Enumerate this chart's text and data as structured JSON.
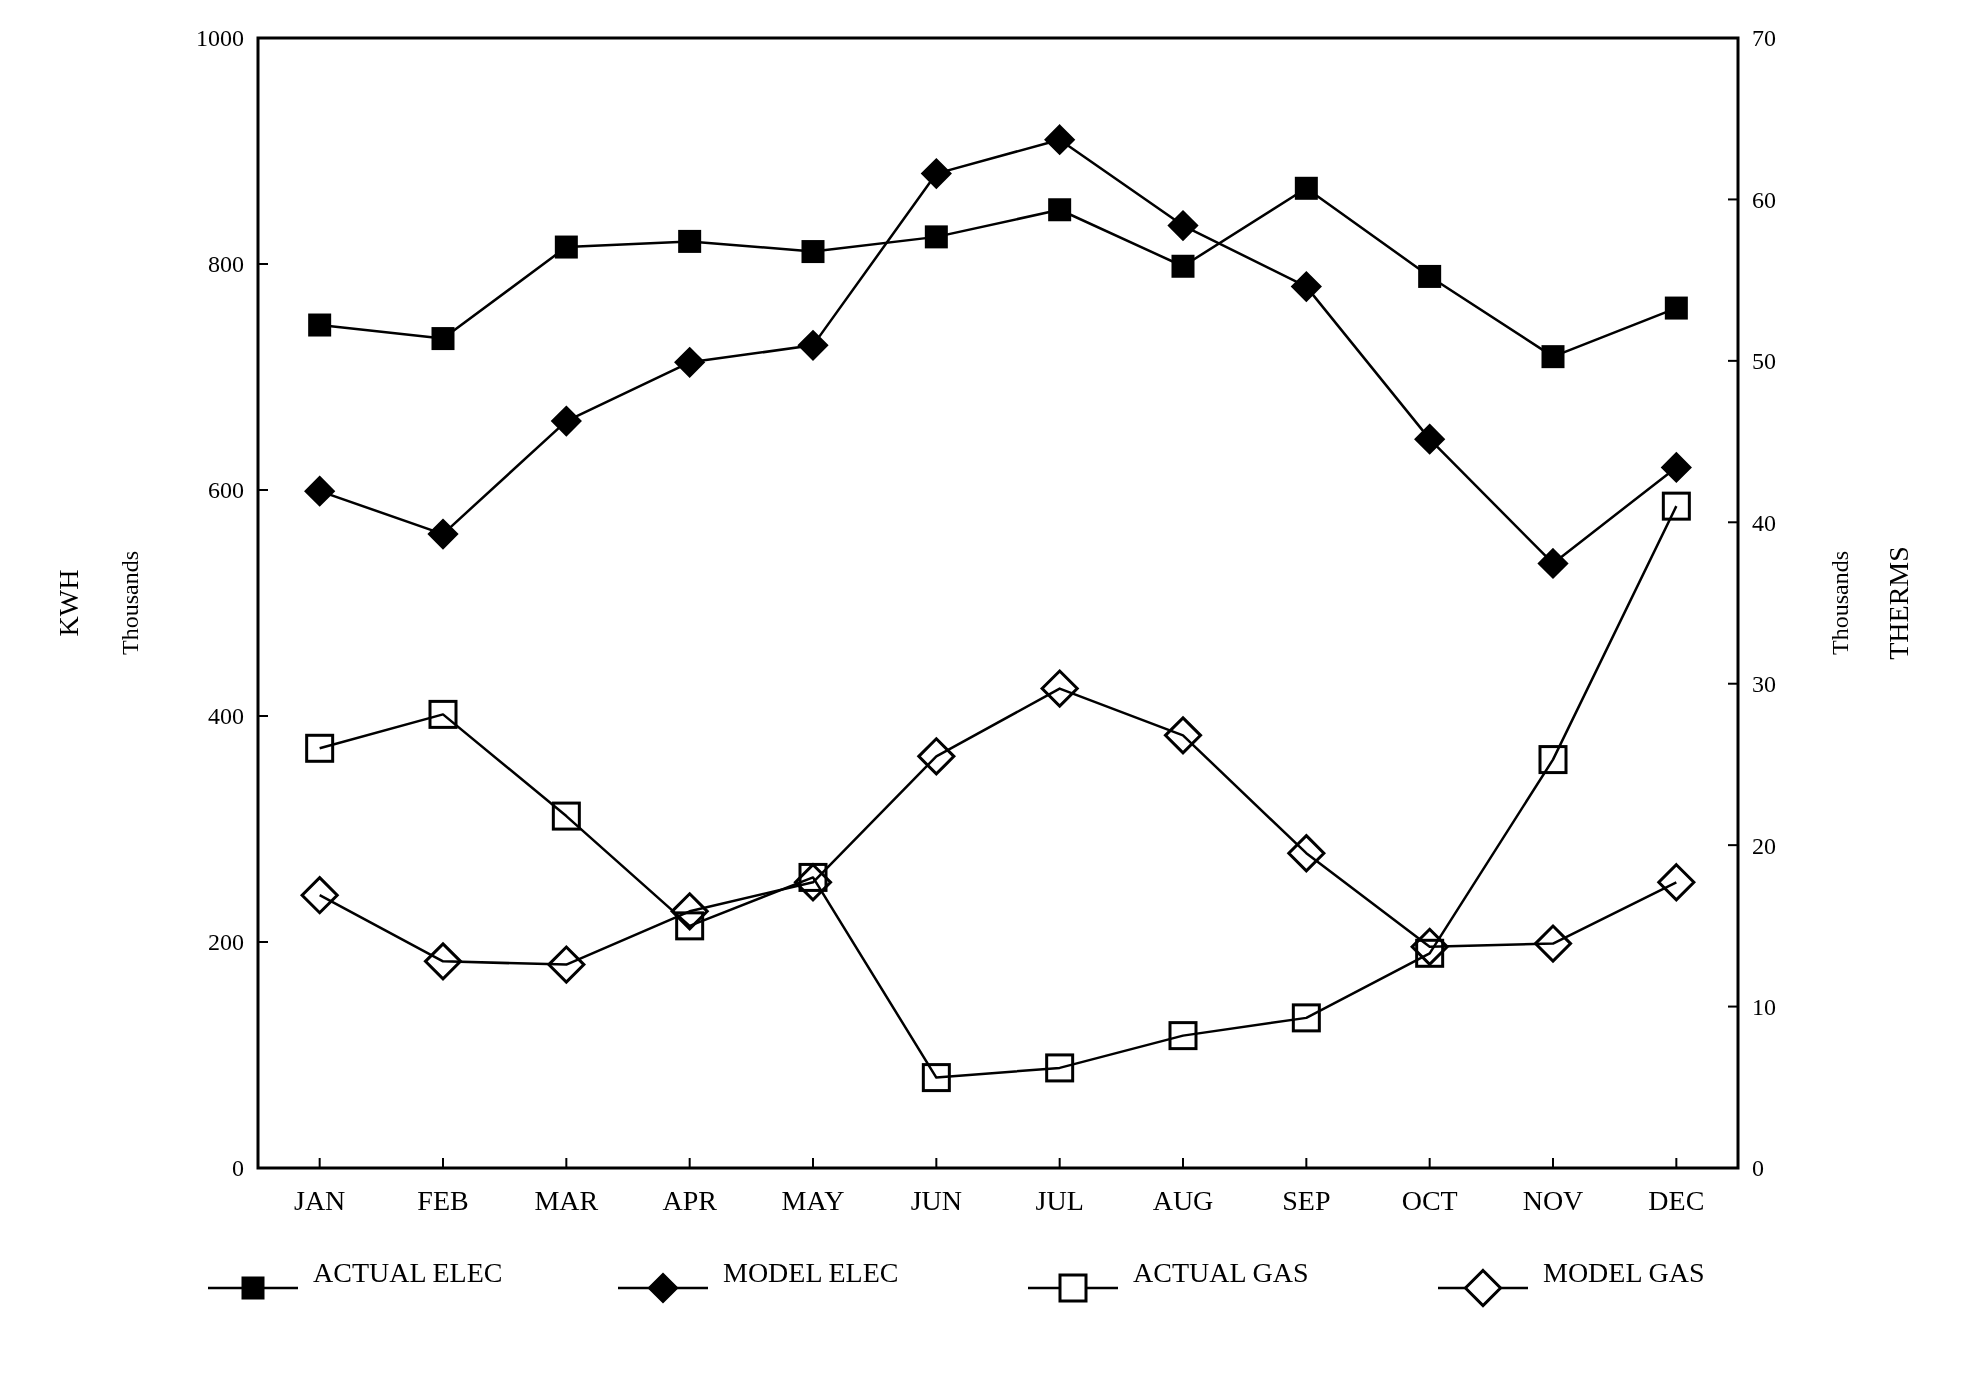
{
  "chart_data": {
    "type": "line",
    "categories": [
      "JAN",
      "FEB",
      "MAR",
      "APR",
      "MAY",
      "JUN",
      "JUL",
      "AUG",
      "SEP",
      "OCT",
      "NOV",
      "DEC"
    ],
    "ylabel": "KWH Thousands",
    "y2label": "THERMS Thousands",
    "ylim": [
      0,
      1000
    ],
    "yticks": [
      0,
      200,
      400,
      600,
      800,
      1000
    ],
    "y2lim": [
      0,
      70
    ],
    "y2ticks": [
      0,
      10,
      20,
      30,
      40,
      50,
      60,
      70
    ],
    "grid": false,
    "legend": "bottom",
    "series": [
      {
        "name": "ACTUAL ELEC",
        "color": "#000000",
        "marker": "square",
        "values": [
          746,
          734,
          815,
          820,
          811,
          824,
          848,
          798,
          867,
          789,
          718,
          761
        ]
      },
      {
        "name": "MODEL ELEC",
        "color": "#000000",
        "marker": "diamond",
        "values": [
          599,
          561,
          661,
          713,
          728,
          880,
          910,
          834,
          780,
          645,
          535,
          620
        ]
      },
      {
        "name": "ACTUAL GAS",
        "color": "#000000",
        "marker": "square",
        "axis": "y2",
        "values": [
          26.0,
          28.1,
          21.8,
          15.0,
          18.0,
          5.6,
          6.2,
          8.2,
          9.3,
          13.3,
          25.3,
          41.0
        ]
      },
      {
        "name": "MODEL GAS",
        "color": "#000000",
        "marker": "diamond",
        "axis": "y2",
        "values": [
          16.9,
          12.8,
          12.6,
          15.9,
          17.7,
          25.5,
          29.7,
          26.8,
          19.5,
          13.7,
          13.9,
          17.7
        ]
      }
    ]
  }
}
